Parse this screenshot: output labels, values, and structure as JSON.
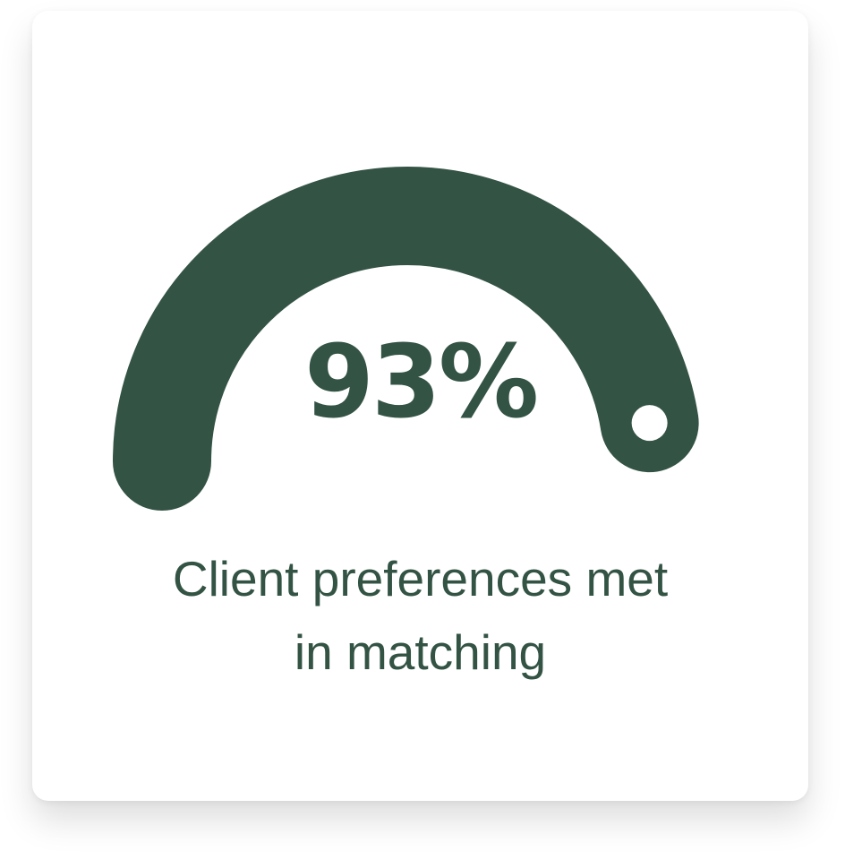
{
  "stat": {
    "value_text": "93%",
    "percent": 93,
    "caption_line1": "Client preferences met",
    "caption_line2": "in matching"
  },
  "colors": {
    "accent": "#335344",
    "card_background": "#ffffff",
    "knob": "#ffffff"
  }
}
